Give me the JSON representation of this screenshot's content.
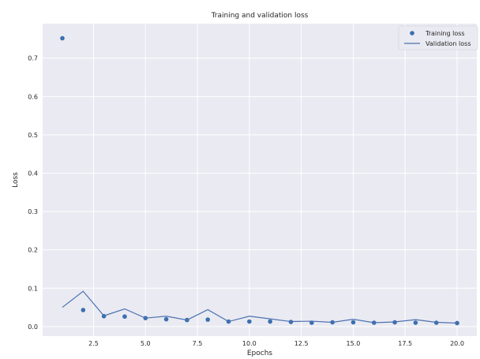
{
  "chart_data": {
    "type": "line",
    "title": "Training and validation loss",
    "xlabel": "Epochs",
    "ylabel": "Loss",
    "xlim": [
      0.05,
      20.95
    ],
    "ylim": [
      -0.025,
      0.79
    ],
    "xticks": [
      2.5,
      5.0,
      7.5,
      10.0,
      12.5,
      15.0,
      17.5,
      20.0
    ],
    "xtick_labels": [
      "2.5",
      "5.0",
      "7.5",
      "10.0",
      "12.5",
      "15.0",
      "17.5",
      "20.0"
    ],
    "yticks": [
      0.0,
      0.1,
      0.2,
      0.3,
      0.4,
      0.5,
      0.6,
      0.7
    ],
    "ytick_labels": [
      "0.0",
      "0.1",
      "0.2",
      "0.3",
      "0.4",
      "0.5",
      "0.6",
      "0.7"
    ],
    "grid": true,
    "legend_position": "top-right",
    "x": [
      1,
      2,
      3,
      4,
      5,
      6,
      7,
      8,
      9,
      10,
      11,
      12,
      13,
      14,
      15,
      16,
      17,
      18,
      19,
      20
    ],
    "series": [
      {
        "name": "Training loss",
        "style": "markers",
        "color": "#3a6fb0",
        "values": [
          0.752,
          0.043,
          0.027,
          0.026,
          0.022,
          0.019,
          0.017,
          0.018,
          0.013,
          0.013,
          0.013,
          0.012,
          0.01,
          0.011,
          0.011,
          0.01,
          0.011,
          0.01,
          0.01,
          0.009
        ]
      },
      {
        "name": "Validation loss",
        "style": "line",
        "color": "#4c72b0",
        "values": [
          0.05,
          0.092,
          0.028,
          0.046,
          0.022,
          0.027,
          0.017,
          0.044,
          0.013,
          0.027,
          0.02,
          0.013,
          0.014,
          0.011,
          0.019,
          0.01,
          0.012,
          0.018,
          0.011,
          0.009
        ]
      }
    ]
  }
}
